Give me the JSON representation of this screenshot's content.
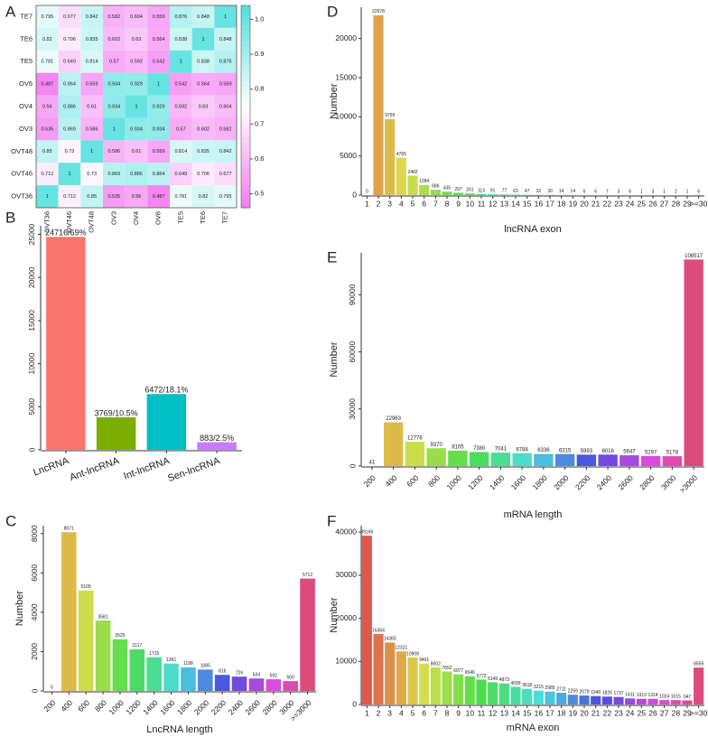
{
  "chart_data": [
    {
      "type": "heatmap",
      "panel": "A",
      "rows": [
        "TE7",
        "TE6",
        "TE5",
        "OV6",
        "OV4",
        "OV3",
        "OVT48",
        "OVT46",
        "OVT36"
      ],
      "columns": [
        "OVT36",
        "OVT46",
        "OVT48",
        "OV3",
        "OV4",
        "OV6",
        "TE5",
        "TE6",
        "TE7"
      ],
      "values": [
        [
          0.795,
          0.677,
          0.842,
          0.582,
          0.604,
          0.559,
          0.876,
          0.848,
          1
        ],
        [
          0.82,
          0.706,
          0.835,
          0.602,
          0.63,
          0.564,
          0.838,
          1,
          0.848
        ],
        [
          0.781,
          0.649,
          0.814,
          0.57,
          0.592,
          0.542,
          1,
          0.838,
          0.876
        ],
        [
          0.487,
          0.864,
          0.559,
          0.934,
          0.929,
          1,
          0.542,
          0.564,
          0.559
        ],
        [
          0.56,
          0.886,
          0.61,
          0.934,
          1,
          0.929,
          0.592,
          0.63,
          0.604
        ],
        [
          0.535,
          0.869,
          0.586,
          1,
          0.934,
          0.934,
          0.57,
          0.602,
          0.582
        ],
        [
          0.85,
          0.73,
          1,
          0.586,
          0.61,
          0.559,
          0.814,
          0.835,
          0.842
        ],
        [
          0.712,
          1,
          0.73,
          0.869,
          0.886,
          0.864,
          0.649,
          0.706,
          0.677
        ],
        [
          1,
          0.712,
          0.85,
          0.535,
          0.56,
          0.487,
          0.781,
          0.82,
          0.795
        ]
      ],
      "colors": [
        "#f27af0",
        "#ffffff",
        "#4fe0dc"
      ],
      "color_stops": [
        0.46,
        0.75,
        1.04
      ],
      "colorlim": [
        0.46,
        1.04
      ],
      "colorticks": [
        0.5,
        0.6,
        0.7,
        0.8,
        0.9,
        {
          "value": 1,
          "label": "1.0"
        }
      ]
    },
    {
      "type": "bar",
      "panel": "B",
      "categories": [
        "LncRNA",
        "Ant-lncRNA",
        "Int-lncRNA",
        "Sen-lncRNA"
      ],
      "values": [
        24716,
        3769,
        6472,
        883
      ],
      "value_labels": [
        "24716/69%",
        "3769/10.5%",
        "6472/18.1%",
        "883/2.5%"
      ],
      "colors": [
        "#f8766d",
        "#7cae00",
        "#00bfc4",
        "#c77cff"
      ],
      "ylim": [
        0,
        26000
      ],
      "yticks": [
        0,
        5000,
        10000,
        15000,
        20000,
        25000
      ]
    },
    {
      "type": "bar",
      "panel": "C",
      "xlabel": "LncRNA length",
      "ylabel": "Number",
      "categories": [
        "200",
        "400",
        "600",
        "800",
        "1000",
        "1200",
        "1400",
        "1600",
        "1800",
        "2000",
        "2200",
        "2400",
        "2600",
        "2800",
        "3000",
        ">=3000"
      ],
      "values": [
        0,
        8071,
        5105,
        3581,
        2625,
        2117,
        1715,
        1391,
        1198,
        1085,
        816,
        726,
        634,
        592,
        500,
        5712
      ],
      "hue_range": [
        25,
        340
      ],
      "ylim": [
        0,
        8400
      ],
      "yticks": [
        0,
        2000,
        4000,
        6000,
        8000
      ]
    },
    {
      "type": "bar",
      "panel": "D",
      "xlabel": "lncRNA exon",
      "ylabel": "Number",
      "categories": [
        "1",
        "2",
        "3",
        "4",
        "5",
        "6",
        "7",
        "8",
        "9",
        "10",
        "11",
        "12",
        "13",
        "14",
        "15",
        "16",
        "17",
        "18",
        "19",
        "20",
        "21",
        "22",
        "23",
        "24",
        "25",
        "26",
        "27",
        "28",
        "29",
        ">=30"
      ],
      "values": [
        0,
        22978,
        9709,
        4765,
        2482,
        1284,
        686,
        435,
        297,
        201,
        113,
        91,
        77,
        63,
        47,
        32,
        30,
        14,
        14,
        6,
        6,
        7,
        3,
        6,
        1,
        3,
        1,
        2,
        1,
        6
      ],
      "hue_range": [
        25,
        340
      ],
      "ylim": [
        0,
        24000
      ],
      "yticks": [
        0,
        5000,
        10000,
        15000,
        20000
      ]
    },
    {
      "type": "bar",
      "panel": "E",
      "xlabel": "mRNA length",
      "ylabel": "Number",
      "categories": [
        "200",
        "400",
        "600",
        "800",
        "1000",
        "1200",
        "1400",
        "1600",
        "1800",
        "2000",
        "2200",
        "2400",
        "2600",
        "2800",
        "3000",
        ">3000"
      ],
      "values": [
        41,
        22963,
        12778,
        9370,
        8105,
        7380,
        7041,
        6784,
        6336,
        6315,
        5993,
        6016,
        5647,
        5297,
        5178,
        108517
      ],
      "hue_range": [
        25,
        340
      ],
      "ylim": [
        0,
        112000
      ],
      "yticks": [
        0,
        30000,
        60000,
        90000
      ]
    },
    {
      "type": "bar",
      "panel": "F",
      "xlabel": "mRNA exon",
      "ylabel": "Number",
      "categories": [
        "1",
        "2",
        "3",
        "4",
        "5",
        "6",
        "7",
        "8",
        "9",
        "10",
        "11",
        "12",
        "13",
        "14",
        "15",
        "16",
        "17",
        "18",
        "19",
        "20",
        "21",
        "22",
        "23",
        "24",
        "25",
        "26",
        "27",
        "28",
        "29",
        ">=30"
      ],
      "values": [
        39166,
        16364,
        14383,
        12321,
        10909,
        9491,
        8602,
        7652,
        6977,
        6540,
        5772,
        5145,
        4873,
        4099,
        3618,
        3215,
        2985,
        2711,
        2259,
        2079,
        1946,
        1826,
        1737,
        1411,
        1313,
        1314,
        1024,
        1015,
        947,
        8559
      ],
      "hue_range": [
        5,
        340
      ],
      "ylim": [
        0,
        41500
      ],
      "yticks": [
        0,
        10000,
        20000,
        30000,
        40000
      ]
    }
  ]
}
